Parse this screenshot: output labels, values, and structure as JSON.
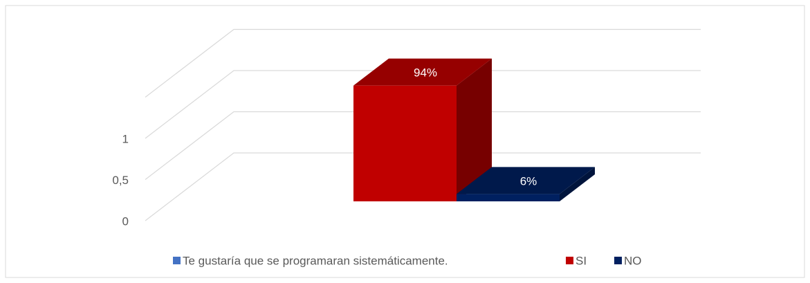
{
  "chart_data": {
    "type": "bar3d",
    "categories": [
      null
    ],
    "series": [
      {
        "name": "Te gustaría que se programaran sistemáticamente.",
        "color": "#4472c4",
        "values": [
          null
        ]
      },
      {
        "name": "SI",
        "color": "#c00000",
        "values": [
          0.94
        ],
        "value_labels": [
          "94%"
        ]
      },
      {
        "name": "NO",
        "color": "#002060",
        "values": [
          0.06
        ],
        "value_labels": [
          "6%"
        ]
      }
    ],
    "ylim": [
      0,
      1.5
    ],
    "yticks": [
      0,
      {
        "value": 0.5,
        "label": "0,5"
      },
      1
    ],
    "grid": true,
    "legend": "bottom"
  }
}
